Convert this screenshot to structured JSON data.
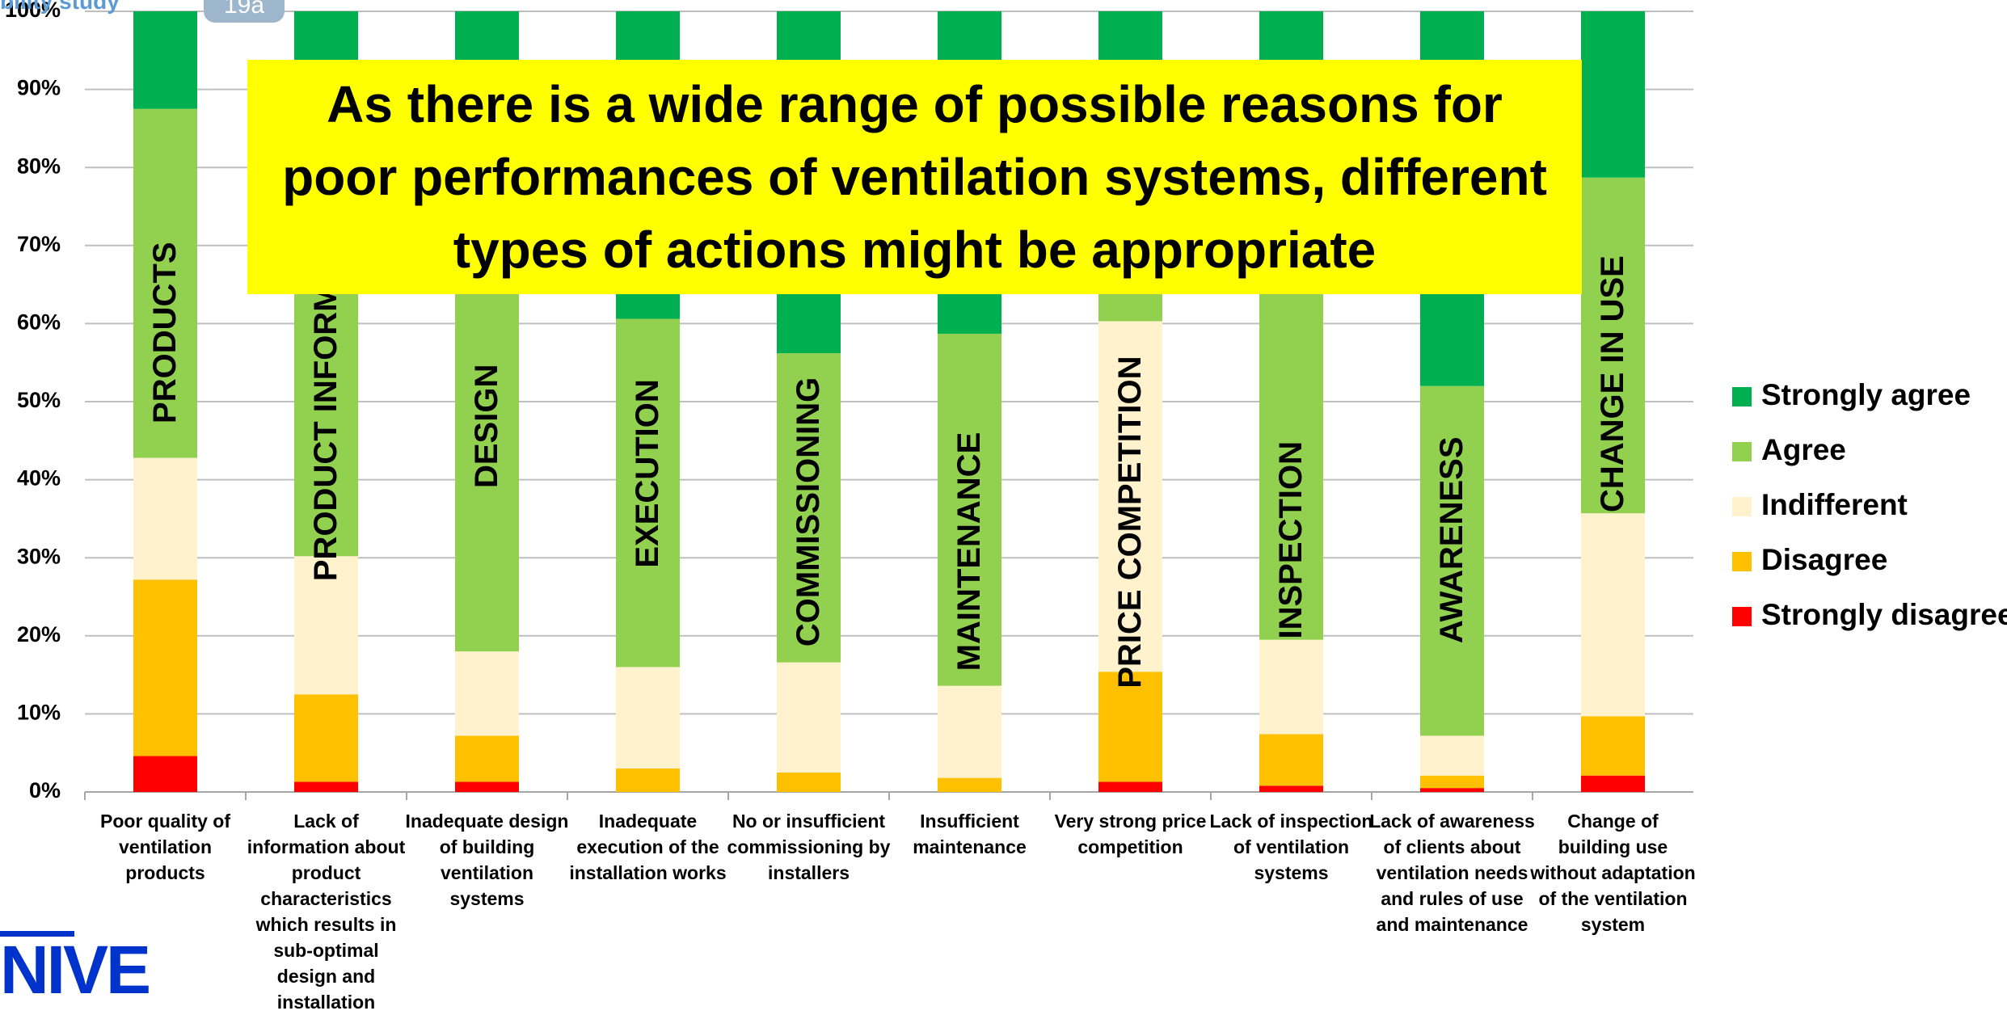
{
  "header": {
    "title": "bility study",
    "badge": "19a"
  },
  "logo": "NIVE",
  "chart_data": {
    "type": "stacked_bar",
    "annotation": "As there is a wide range of possible reasons for poor performances of ventilation systems, different types of actions might be appropriate",
    "categories": [
      "Poor quality of ventilation products",
      "Lack of information about product characteristics which results in sub-optimal design and installation",
      "Inadequate design of building ventilation systems",
      "Inadequate execution of the installation works",
      "No or insufficient commissioning by installers",
      "Insufficient maintenance",
      "Very strong price competition",
      "Lack of inspection of ventilation systems",
      "Lack of awareness of clients about ventilation needs and rules of use and maintenance",
      "Change of building use without adaptation of the ventilation system"
    ],
    "bar_labels": [
      "PRODUCTS",
      "PRODUCT INFORMATION",
      "DESIGN",
      "EXECUTION",
      "COMMISSIONING",
      "MAINTENANCE",
      "PRICE COMPETITION",
      "INSPECTION",
      "AWARENESS",
      "CHANGE IN USE"
    ],
    "series": [
      {
        "name": "Strongly disagree",
        "color": "#ff0000",
        "values": [
          4.6,
          1.3,
          1.3,
          0,
          0,
          0,
          1.3,
          0.8,
          0.5,
          2.1
        ]
      },
      {
        "name": "Disagree",
        "color": "#ffc000",
        "values": [
          22.6,
          11.2,
          5.9,
          3,
          2.5,
          1.8,
          14.1,
          6.6,
          1.6,
          7.6
        ]
      },
      {
        "name": "Indifferent",
        "color": "#fff2cc",
        "values": [
          15.6,
          17.7,
          10.8,
          13,
          14.1,
          11.8,
          44.9,
          12.1,
          5.1,
          26
        ]
      },
      {
        "name": "Agree",
        "color": "#92d050",
        "values": [
          44.7,
          51.8,
          62,
          44.6,
          39.6,
          45.1,
          14.7,
          60.5,
          44.8,
          43
        ]
      },
      {
        "name": "Strongly agree",
        "color": "#00b050",
        "values": [
          12.5,
          18,
          20,
          39.4,
          43.8,
          41.3,
          25,
          20,
          48,
          21.3
        ]
      }
    ],
    "ylim": [
      0,
      100
    ],
    "yticks": [
      {
        "value": 0,
        "label": "0%"
      },
      {
        "value": 10,
        "label": "10%"
      },
      {
        "value": 20,
        "label": "20%"
      },
      {
        "value": 30,
        "label": "30%"
      },
      {
        "value": 40,
        "label": "40%"
      },
      {
        "value": 50,
        "label": "50%"
      },
      {
        "value": 60,
        "label": "60%"
      },
      {
        "value": 70,
        "label": "70%"
      },
      {
        "value": 80,
        "label": "80%"
      },
      {
        "value": 90,
        "label": "90%"
      },
      {
        "value": 100,
        "label": "100%"
      }
    ],
    "grid": true,
    "legend": "right"
  }
}
